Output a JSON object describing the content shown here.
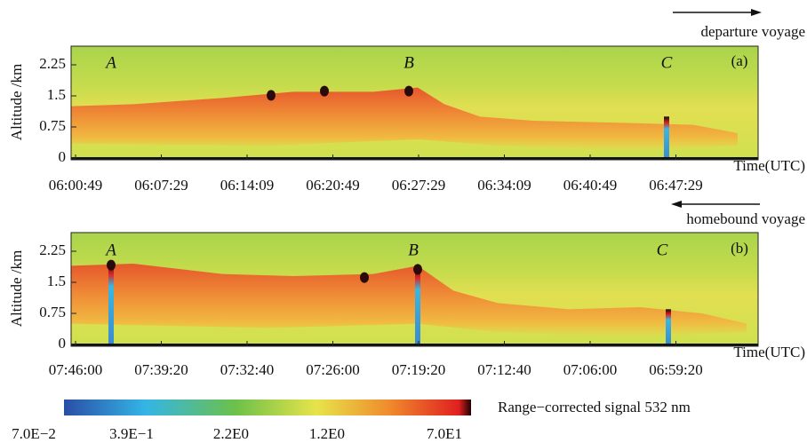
{
  "chart_data": [
    {
      "type": "heatmap",
      "direction_label": "departure voyage",
      "panel_label": "(a)",
      "ylabel": "Altitude /km",
      "xlabel": "Time(UTC)",
      "categories": [
        "06:00:49",
        "06:07:29",
        "06:14:09",
        "06:20:49",
        "06:27:29",
        "06:34:09",
        "06:40:49",
        "06:47:29"
      ],
      "annotations": [
        "A",
        "B",
        "C"
      ],
      "ylim": [
        0,
        2.7
      ],
      "yticks": [
        0,
        0.75,
        1.5,
        2.25
      ]
    },
    {
      "type": "heatmap",
      "direction_label": "homebound voyage",
      "panel_label": "(b)",
      "ylabel": "Altitude /km",
      "xlabel": "Time(UTC)",
      "categories": [
        "07:46:00",
        "07:39:20",
        "07:32:40",
        "07:26:00",
        "07:19:20",
        "07:12:40",
        "07:06:00",
        "06:59:20"
      ],
      "annotations": [
        "A",
        "B",
        "C"
      ],
      "ylim": [
        0,
        2.7
      ],
      "yticks": [
        0,
        0.75,
        1.5,
        2.25
      ]
    }
  ],
  "colorbar": {
    "label": "Range−corrected signal 532 nm",
    "tick_labels": [
      "7.0E−2",
      "3.9E−1",
      "2.2E0",
      "1.2E0",
      "7.0E1"
    ]
  }
}
